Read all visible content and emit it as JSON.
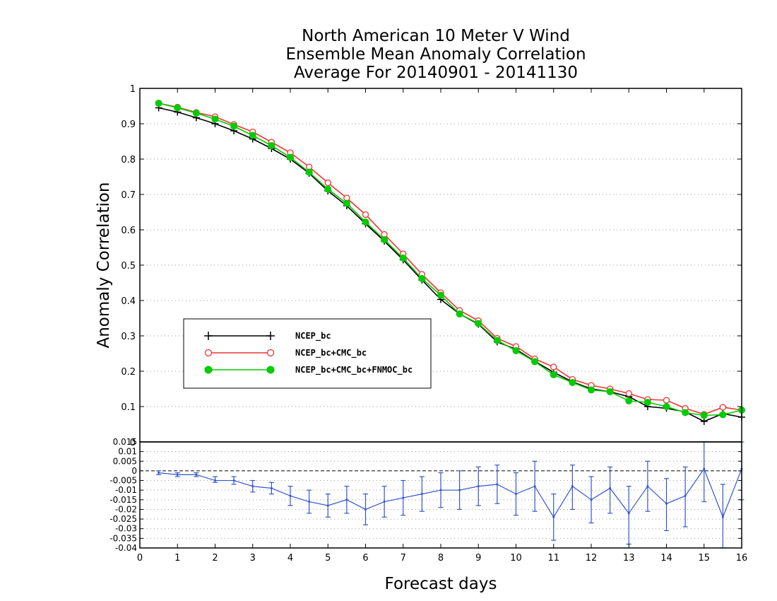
{
  "chart_data": {
    "type": "line",
    "title": [
      "North American 10 Meter V Wind",
      "Ensemble Mean Anomaly Correlation",
      "Average For 20140901 - 20141130"
    ],
    "xlabel": "Forecast days",
    "ylabel": "Anomaly Correlation",
    "xlim": [
      0,
      16
    ],
    "ylim": [
      0,
      1
    ],
    "grid": true,
    "legend_position": "center-left",
    "x_ticks": [
      "0",
      "1",
      "2",
      "3",
      "4",
      "5",
      "6",
      "7",
      "8",
      "9",
      "10",
      "11",
      "12",
      "13",
      "14",
      "15",
      "16"
    ],
    "y_ticks": [
      "0",
      "0.1",
      "0.2",
      "0.3",
      "0.4",
      "0.5",
      "0.6",
      "0.7",
      "0.8",
      "0.9",
      "1"
    ],
    "x": [
      0.5,
      1,
      1.5,
      2,
      2.5,
      3,
      3.5,
      4,
      4.5,
      5,
      5.5,
      6,
      6.5,
      7,
      7.5,
      8,
      8.5,
      9,
      9.5,
      10,
      10.5,
      11,
      11.5,
      12,
      12.5,
      13,
      13.5,
      14,
      14.5,
      15,
      15.5,
      16
    ],
    "series": [
      {
        "name": "NCEP_bc",
        "color": "#000000",
        "marker": "plus",
        "values": [
          0.945,
          0.933,
          0.917,
          0.9,
          0.88,
          0.857,
          0.83,
          0.8,
          0.76,
          0.71,
          0.668,
          0.617,
          0.568,
          0.515,
          0.458,
          0.403,
          0.362,
          0.333,
          0.283,
          0.262,
          0.228,
          0.197,
          0.17,
          0.15,
          0.142,
          0.128,
          0.1,
          0.095,
          0.085,
          0.058,
          0.08,
          0.07
        ]
      },
      {
        "name": "NCEP_bc+CMC_bc",
        "color": "#ee3333",
        "marker": "open-circle",
        "values": [
          0.958,
          0.947,
          0.932,
          0.92,
          0.898,
          0.877,
          0.848,
          0.818,
          0.778,
          0.733,
          0.69,
          0.643,
          0.587,
          0.532,
          0.474,
          0.422,
          0.372,
          0.343,
          0.293,
          0.27,
          0.235,
          0.212,
          0.177,
          0.16,
          0.15,
          0.137,
          0.12,
          0.118,
          0.095,
          0.078,
          0.098,
          0.09
        ]
      },
      {
        "name": "NCEP_bc+CMC_bc+FNMOC_bc",
        "color": "#00cc00",
        "marker": "filled-circle",
        "values": [
          0.958,
          0.945,
          0.93,
          0.913,
          0.893,
          0.867,
          0.838,
          0.805,
          0.763,
          0.715,
          0.675,
          0.622,
          0.572,
          0.52,
          0.462,
          0.415,
          0.362,
          0.335,
          0.287,
          0.258,
          0.227,
          0.19,
          0.168,
          0.147,
          0.142,
          0.116,
          0.112,
          0.1,
          0.083,
          0.075,
          0.077,
          0.09
        ]
      }
    ],
    "difference_panel": {
      "ylim": [
        -0.04,
        0.015
      ],
      "y_ticks": [
        "0.015",
        "0.01",
        "0.005",
        "0",
        "-0.005",
        "-0.01",
        "-0.015",
        "-0.02",
        "-0.025",
        "-0.03",
        "-0.035",
        "-0.04"
      ],
      "color": "#3355cc",
      "values": [
        -0.001,
        -0.002,
        -0.002,
        -0.005,
        -0.005,
        -0.008,
        -0.009,
        -0.013,
        -0.016,
        -0.018,
        -0.015,
        -0.02,
        -0.016,
        -0.014,
        -0.012,
        -0.01,
        -0.01,
        -0.008,
        -0.007,
        -0.012,
        -0.008,
        -0.024,
        -0.008,
        -0.015,
        -0.009,
        -0.022,
        -0.008,
        -0.017,
        -0.013,
        0.001,
        -0.024,
        0.001
      ],
      "error_low": [
        -0.002,
        -0.003,
        -0.003,
        -0.006,
        -0.007,
        -0.011,
        -0.012,
        -0.018,
        -0.022,
        -0.024,
        -0.022,
        -0.028,
        -0.024,
        -0.023,
        -0.021,
        -0.019,
        -0.02,
        -0.018,
        -0.017,
        -0.023,
        -0.021,
        -0.036,
        -0.02,
        -0.027,
        -0.022,
        -0.038,
        -0.021,
        -0.031,
        -0.029,
        -0.016,
        -0.041,
        -0.015
      ],
      "error_high": [
        0.0,
        -0.001,
        -0.001,
        -0.003,
        -0.003,
        -0.005,
        -0.006,
        -0.008,
        -0.01,
        -0.012,
        -0.008,
        -0.012,
        -0.008,
        -0.005,
        -0.003,
        -0.001,
        0.0,
        0.002,
        0.003,
        -0.001,
        0.005,
        -0.012,
        0.003,
        -0.003,
        0.002,
        -0.008,
        0.005,
        -0.004,
        0.002,
        0.018,
        -0.007,
        0.017
      ]
    }
  }
}
